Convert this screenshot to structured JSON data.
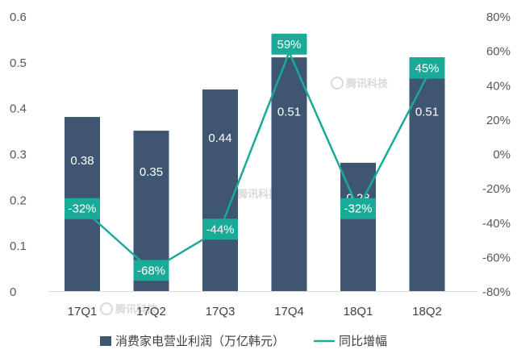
{
  "watermark_text": "腾讯科技",
  "chart_data": {
    "type": "bar",
    "categories": [
      "17Q1",
      "17Q2",
      "17Q3",
      "17Q4",
      "18Q1",
      "18Q2"
    ],
    "series": [
      {
        "name": "消费家电营业利润（万亿韩元）",
        "type": "bar",
        "axis": "left",
        "values": [
          0.38,
          0.35,
          0.44,
          0.51,
          0.28,
          0.51
        ],
        "labels": [
          "0.38",
          "0.35",
          "0.44",
          "0.51",
          "0.28",
          "0.51"
        ],
        "color": "#3f5672"
      },
      {
        "name": "同比增幅",
        "type": "line",
        "axis": "right",
        "values": [
          -32,
          -68,
          -44,
          59,
          -32,
          45
        ],
        "labels": [
          "-32%",
          "-68%",
          "-44%",
          "59%",
          "-32%",
          "45%"
        ],
        "color": "#1aaa98"
      }
    ],
    "left_axis": {
      "ylim": [
        0,
        0.6
      ],
      "ticks": [
        0,
        0.1,
        0.2,
        0.3,
        0.4,
        0.5,
        0.6
      ],
      "tick_labels": [
        "0",
        "0.1",
        "0.2",
        "0.3",
        "0.4",
        "0.5",
        "0.6"
      ]
    },
    "right_axis": {
      "ylim": [
        -80,
        80
      ],
      "ticks": [
        -80,
        -60,
        -40,
        -20,
        0,
        20,
        40,
        60,
        80
      ],
      "tick_labels": [
        "-80%",
        "-60%",
        "-40%",
        "-20%",
        "0%",
        "20%",
        "40%",
        "60%",
        "80%"
      ]
    },
    "grid": false,
    "legend_position": "bottom"
  }
}
